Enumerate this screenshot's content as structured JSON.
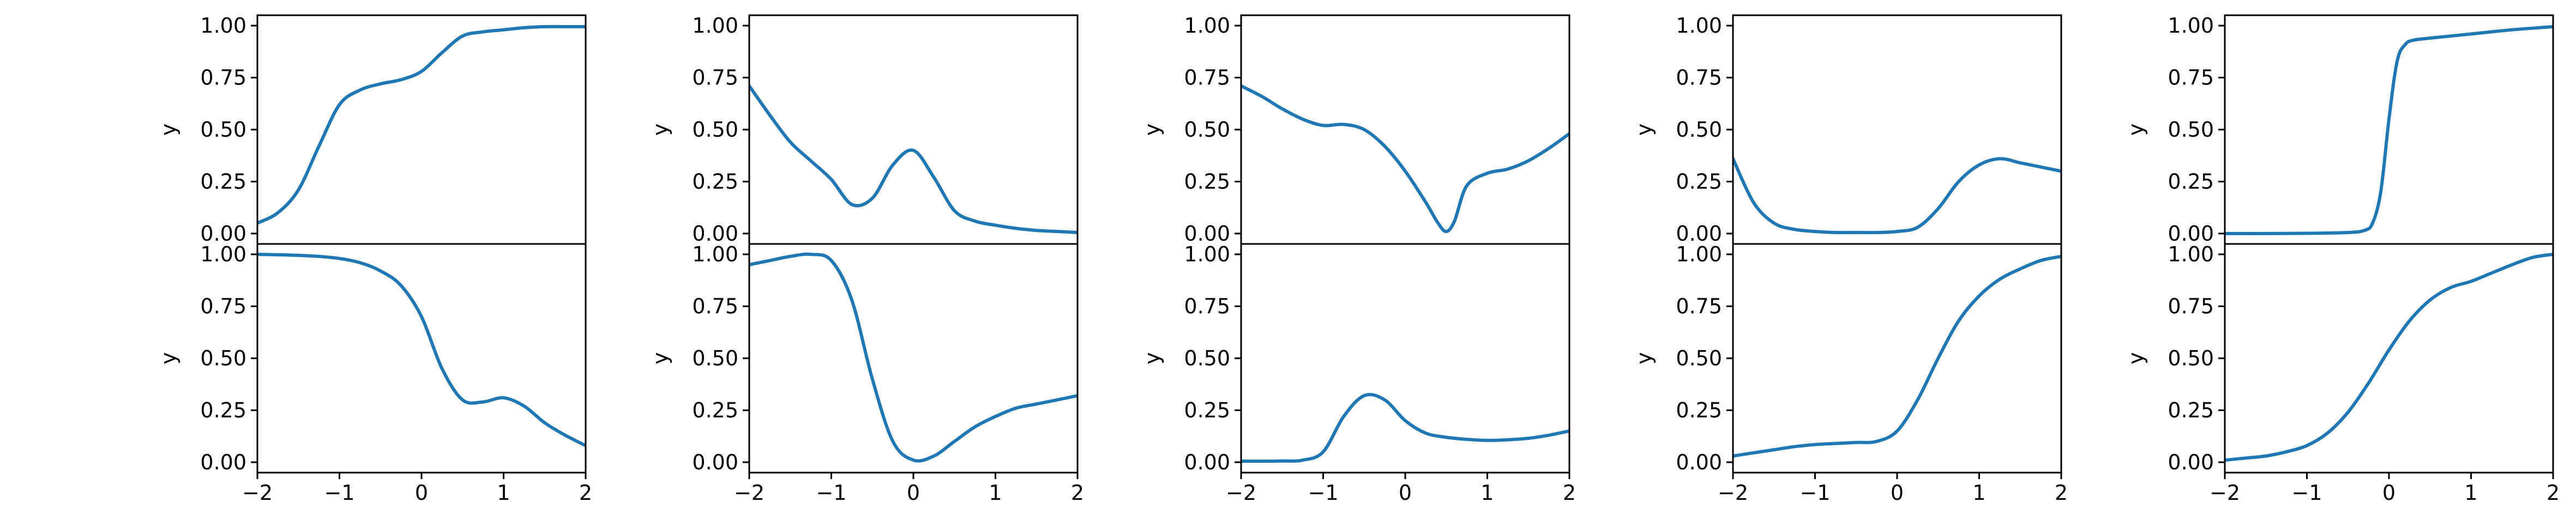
{
  "chart_data": [
    {
      "type": "line",
      "row": 0,
      "col": 0,
      "ylabel": "y",
      "xlim": [
        -2,
        2
      ],
      "ylim": [
        -0.05,
        1.05
      ],
      "xticks": [
        -2,
        -1,
        0,
        1,
        2
      ],
      "xtick_labels": [
        "−2",
        "−1",
        "0",
        "1",
        "2"
      ],
      "show_xticks": false,
      "yticks": [
        0,
        0.25,
        0.5,
        0.75,
        1
      ],
      "ytick_labels": [
        "0.00",
        "0.25",
        "0.50",
        "0.75",
        "1.00"
      ],
      "x": [
        -2,
        -1.75,
        -1.5,
        -1.25,
        -1,
        -0.75,
        -0.5,
        -0.25,
        0,
        0.25,
        0.5,
        0.75,
        1,
        1.25,
        1.5,
        1.75,
        2
      ],
      "y": [
        0.05,
        0.1,
        0.21,
        0.42,
        0.62,
        0.69,
        0.72,
        0.74,
        0.78,
        0.87,
        0.95,
        0.97,
        0.98,
        0.99,
        0.995,
        0.995,
        0.995
      ]
    },
    {
      "type": "line",
      "row": 0,
      "col": 1,
      "ylabel": "y",
      "xlim": [
        -2,
        2
      ],
      "ylim": [
        -0.05,
        1.05
      ],
      "xticks": [
        -2,
        -1,
        0,
        1,
        2
      ],
      "xtick_labels": [
        "−2",
        "−1",
        "0",
        "1",
        "2"
      ],
      "show_xticks": false,
      "yticks": [
        0,
        0.25,
        0.5,
        0.75,
        1
      ],
      "ytick_labels": [
        "0.00",
        "0.25",
        "0.50",
        "0.75",
        "1.00"
      ],
      "x": [
        -2,
        -1.75,
        -1.5,
        -1.25,
        -1,
        -0.75,
        -0.5,
        -0.25,
        0,
        0.25,
        0.5,
        0.75,
        1,
        1.25,
        1.5,
        1.75,
        2
      ],
      "y": [
        0.71,
        0.57,
        0.44,
        0.35,
        0.26,
        0.14,
        0.17,
        0.33,
        0.4,
        0.27,
        0.11,
        0.06,
        0.04,
        0.025,
        0.015,
        0.01,
        0.005
      ]
    },
    {
      "type": "line",
      "row": 0,
      "col": 2,
      "ylabel": "y",
      "xlim": [
        -2,
        2
      ],
      "ylim": [
        -0.05,
        1.05
      ],
      "xticks": [
        -2,
        -1,
        0,
        1,
        2
      ],
      "xtick_labels": [
        "−2",
        "−1",
        "0",
        "1",
        "2"
      ],
      "show_xticks": false,
      "yticks": [
        0,
        0.25,
        0.5,
        0.75,
        1
      ],
      "ytick_labels": [
        "0.00",
        "0.25",
        "0.50",
        "0.75",
        "1.00"
      ],
      "x": [
        -2,
        -1.75,
        -1.5,
        -1.25,
        -1,
        -0.75,
        -0.5,
        -0.25,
        0,
        0.25,
        0.4,
        0.5,
        0.6,
        0.75,
        1,
        1.25,
        1.5,
        1.75,
        2
      ],
      "y": [
        0.71,
        0.66,
        0.6,
        0.55,
        0.52,
        0.525,
        0.5,
        0.42,
        0.3,
        0.15,
        0.05,
        0.01,
        0.06,
        0.23,
        0.29,
        0.31,
        0.35,
        0.41,
        0.48
      ]
    },
    {
      "type": "line",
      "row": 0,
      "col": 3,
      "ylabel": "y",
      "xlim": [
        -2,
        2
      ],
      "ylim": [
        -0.05,
        1.05
      ],
      "xticks": [
        -2,
        -1,
        0,
        1,
        2
      ],
      "xtick_labels": [
        "−2",
        "−1",
        "0",
        "1",
        "2"
      ],
      "show_xticks": false,
      "yticks": [
        0,
        0.25,
        0.5,
        0.75,
        1
      ],
      "ytick_labels": [
        "0.00",
        "0.25",
        "0.50",
        "0.75",
        "1.00"
      ],
      "x": [
        -2,
        -1.75,
        -1.5,
        -1.25,
        -1,
        -0.75,
        -0.5,
        -0.25,
        0,
        0.25,
        0.5,
        0.75,
        1,
        1.25,
        1.5,
        1.75,
        2
      ],
      "y": [
        0.36,
        0.15,
        0.05,
        0.02,
        0.01,
        0.005,
        0.005,
        0.005,
        0.01,
        0.03,
        0.12,
        0.25,
        0.33,
        0.36,
        0.34,
        0.32,
        0.3
      ]
    },
    {
      "type": "line",
      "row": 0,
      "col": 4,
      "ylabel": "y",
      "xlim": [
        -2,
        2
      ],
      "ylim": [
        -0.05,
        1.05
      ],
      "xticks": [
        -2,
        -1,
        0,
        1,
        2
      ],
      "xtick_labels": [
        "−2",
        "−1",
        "0",
        "1",
        "2"
      ],
      "show_xticks": false,
      "yticks": [
        0,
        0.25,
        0.5,
        0.75,
        1
      ],
      "ytick_labels": [
        "0.00",
        "0.25",
        "0.50",
        "0.75",
        "1.00"
      ],
      "x": [
        -2,
        -1.5,
        -1,
        -0.5,
        -0.3,
        -0.2,
        -0.1,
        0,
        0.1,
        0.2,
        0.3,
        0.5,
        1,
        1.5,
        2
      ],
      "y": [
        0,
        0,
        0.001,
        0.005,
        0.015,
        0.05,
        0.2,
        0.55,
        0.83,
        0.91,
        0.93,
        0.94,
        0.96,
        0.98,
        0.995
      ]
    },
    {
      "type": "line",
      "row": 1,
      "col": 0,
      "ylabel": "y",
      "xlim": [
        -2,
        2
      ],
      "ylim": [
        -0.05,
        1.05
      ],
      "xticks": [
        -2,
        -1,
        0,
        1,
        2
      ],
      "xtick_labels": [
        "−2",
        "−1",
        "0",
        "1",
        "2"
      ],
      "show_xticks": true,
      "yticks": [
        0,
        0.25,
        0.5,
        0.75,
        1
      ],
      "ytick_labels": [
        "0.00",
        "0.25",
        "0.50",
        "0.75",
        "1.00"
      ],
      "x": [
        -2,
        -1.75,
        -1.5,
        -1.25,
        -1,
        -0.75,
        -0.5,
        -0.25,
        0,
        0.25,
        0.5,
        0.75,
        1,
        1.25,
        1.5,
        1.75,
        2
      ],
      "y": [
        1,
        0.998,
        0.995,
        0.99,
        0.98,
        0.96,
        0.92,
        0.85,
        0.7,
        0.45,
        0.3,
        0.29,
        0.31,
        0.27,
        0.19,
        0.13,
        0.08
      ]
    },
    {
      "type": "line",
      "row": 1,
      "col": 1,
      "ylabel": "y",
      "xlim": [
        -2,
        2
      ],
      "ylim": [
        -0.05,
        1.05
      ],
      "xticks": [
        -2,
        -1,
        0,
        1,
        2
      ],
      "xtick_labels": [
        "−2",
        "−1",
        "0",
        "1",
        "2"
      ],
      "show_xticks": true,
      "yticks": [
        0,
        0.25,
        0.5,
        0.75,
        1
      ],
      "ytick_labels": [
        "0.00",
        "0.25",
        "0.50",
        "0.75",
        "1.00"
      ],
      "x": [
        -2,
        -1.75,
        -1.5,
        -1.25,
        -1,
        -0.75,
        -0.5,
        -0.25,
        0,
        0.25,
        0.5,
        0.75,
        1,
        1.25,
        1.5,
        1.75,
        2
      ],
      "y": [
        0.95,
        0.97,
        0.99,
        1,
        0.97,
        0.78,
        0.4,
        0.1,
        0.01,
        0.03,
        0.1,
        0.17,
        0.22,
        0.26,
        0.28,
        0.3,
        0.32
      ]
    },
    {
      "type": "line",
      "row": 1,
      "col": 2,
      "ylabel": "y",
      "xlim": [
        -2,
        2
      ],
      "ylim": [
        -0.05,
        1.05
      ],
      "xticks": [
        -2,
        -1,
        0,
        1,
        2
      ],
      "xtick_labels": [
        "−2",
        "−1",
        "0",
        "1",
        "2"
      ],
      "show_xticks": true,
      "yticks": [
        0,
        0.25,
        0.5,
        0.75,
        1
      ],
      "ytick_labels": [
        "0.00",
        "0.25",
        "0.50",
        "0.75",
        "1.00"
      ],
      "x": [
        -2,
        -1.75,
        -1.5,
        -1.25,
        -1,
        -0.75,
        -0.5,
        -0.25,
        0,
        0.25,
        0.5,
        0.75,
        1,
        1.25,
        1.5,
        1.75,
        2
      ],
      "y": [
        0.005,
        0.005,
        0.006,
        0.01,
        0.05,
        0.22,
        0.32,
        0.3,
        0.2,
        0.14,
        0.12,
        0.11,
        0.105,
        0.108,
        0.115,
        0.13,
        0.15
      ]
    },
    {
      "type": "line",
      "row": 1,
      "col": 3,
      "ylabel": "y",
      "xlim": [
        -2,
        2
      ],
      "ylim": [
        -0.05,
        1.05
      ],
      "xticks": [
        -2,
        -1,
        0,
        1,
        2
      ],
      "xtick_labels": [
        "−2",
        "−1",
        "0",
        "1",
        "2"
      ],
      "show_xticks": true,
      "yticks": [
        0,
        0.25,
        0.5,
        0.75,
        1
      ],
      "ytick_labels": [
        "0.00",
        "0.25",
        "0.50",
        "0.75",
        "1.00"
      ],
      "x": [
        -2,
        -1.75,
        -1.5,
        -1.25,
        -1,
        -0.75,
        -0.5,
        -0.25,
        0,
        0.25,
        0.5,
        0.75,
        1,
        1.25,
        1.5,
        1.75,
        2
      ],
      "y": [
        0.03,
        0.045,
        0.06,
        0.075,
        0.085,
        0.09,
        0.095,
        0.1,
        0.15,
        0.3,
        0.5,
        0.68,
        0.8,
        0.88,
        0.93,
        0.97,
        0.99
      ]
    },
    {
      "type": "line",
      "row": 1,
      "col": 4,
      "ylabel": "y",
      "xlim": [
        -2,
        2
      ],
      "ylim": [
        -0.05,
        1.05
      ],
      "xticks": [
        -2,
        -1,
        0,
        1,
        2
      ],
      "xtick_labels": [
        "−2",
        "−1",
        "0",
        "1",
        "2"
      ],
      "show_xticks": true,
      "yticks": [
        0,
        0.25,
        0.5,
        0.75,
        1
      ],
      "ytick_labels": [
        "0.00",
        "0.25",
        "0.50",
        "0.75",
        "1.00"
      ],
      "x": [
        -2,
        -1.75,
        -1.5,
        -1.25,
        -1,
        -0.75,
        -0.5,
        -0.25,
        0,
        0.25,
        0.5,
        0.75,
        1,
        1.25,
        1.5,
        1.75,
        2
      ],
      "y": [
        0.01,
        0.02,
        0.03,
        0.05,
        0.08,
        0.14,
        0.24,
        0.38,
        0.54,
        0.68,
        0.78,
        0.84,
        0.87,
        0.91,
        0.95,
        0.985,
        1
      ]
    }
  ],
  "colors": {
    "series": "#1f77b4",
    "axes": "#000000",
    "background": "#ffffff"
  }
}
